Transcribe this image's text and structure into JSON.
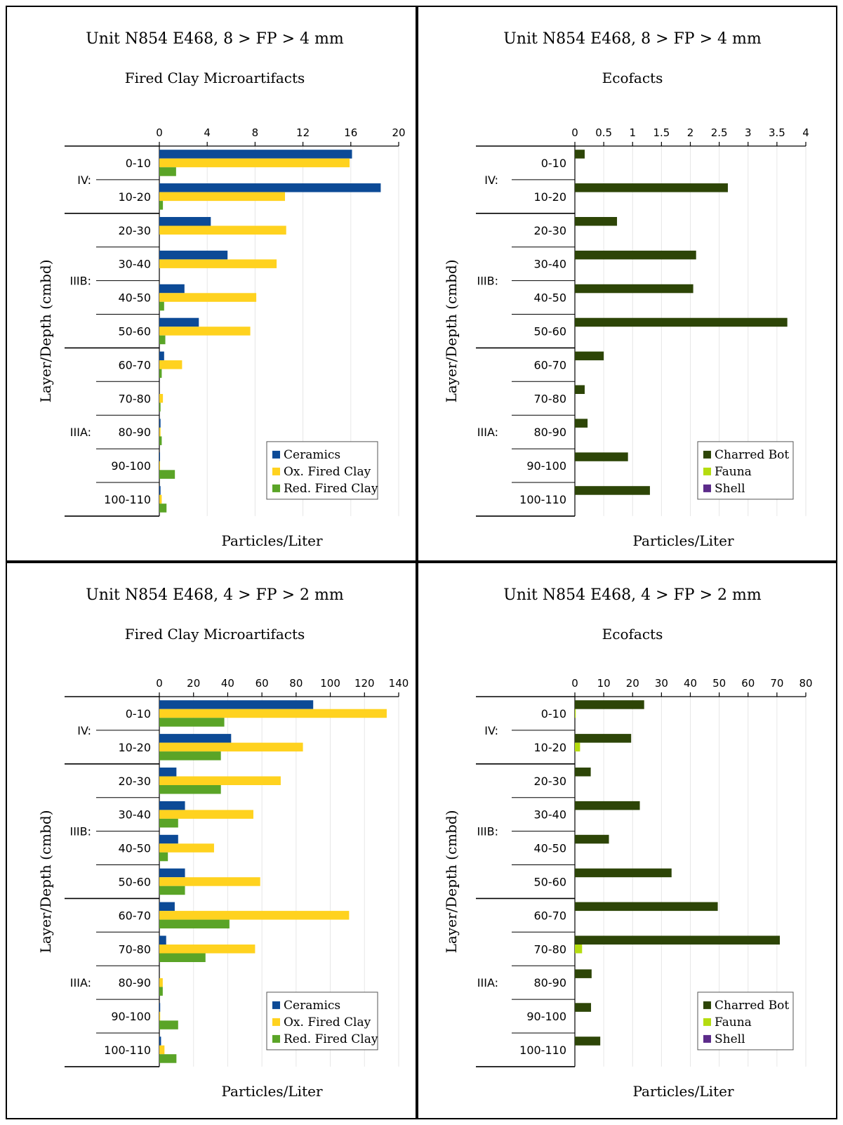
{
  "figure": {
    "colors": {
      "ceramics": "#0c4a96",
      "ox_fired_clay": "#ffd21f",
      "red_fired_clay": "#5aa427",
      "charred_bot": "#2d4507",
      "fauna": "#b5dc10",
      "shell": "#5c2b8a"
    }
  },
  "chart_data": [
    {
      "type": "bar",
      "title": "Unit N854 E468, 8 > FP > 4 mm",
      "subtitle": "Fired Clay Microartifacts",
      "xlabel": "Particles/Liter",
      "ylabel": "Layer/Depth (cmbd)",
      "categories": [
        "0-10",
        "10-20",
        "20-30",
        "30-40",
        "40-50",
        "50-60",
        "60-70",
        "70-80",
        "80-90",
        "90-100",
        "100-110"
      ],
      "layers": [
        {
          "label": "IV:",
          "from": 0,
          "to": 1
        },
        {
          "label": "IIIB:",
          "from": 2,
          "to": 5
        },
        {
          "label": "IIIA:",
          "from": 6,
          "to": 10
        }
      ],
      "xlim": [
        0,
        20
      ],
      "xticks": [
        "0",
        "4",
        "8",
        "12",
        "16",
        "20"
      ],
      "legend_position": "bottom-right",
      "series": [
        {
          "name": "Ceramics",
          "color": "#0c4a96",
          "values": [
            16.1,
            18.5,
            4.3,
            5.7,
            2.1,
            3.3,
            0.4,
            0.0,
            0.1,
            0.05,
            0.1
          ]
        },
        {
          "name": "Ox. Fired Clay",
          "color": "#ffd21f",
          "values": [
            15.9,
            10.5,
            10.6,
            9.8,
            8.1,
            7.6,
            1.9,
            0.3,
            0.1,
            0.05,
            0.2
          ]
        },
        {
          "name": "Red. Fired Clay",
          "color": "#5aa427",
          "values": [
            1.4,
            0.3,
            0.0,
            0.0,
            0.4,
            0.5,
            0.2,
            0.1,
            0.2,
            1.3,
            0.6
          ]
        }
      ]
    },
    {
      "type": "bar",
      "title": "Unit N854 E468, 8 > FP > 4 mm",
      "subtitle": "Ecofacts",
      "xlabel": "Particles/Liter",
      "ylabel": "Layer/Depth (cmbd)",
      "categories": [
        "0-10",
        "10-20",
        "20-30",
        "30-40",
        "40-50",
        "50-60",
        "60-70",
        "70-80",
        "80-90",
        "90-100",
        "100-110"
      ],
      "layers": [
        {
          "label": "IV:",
          "from": 0,
          "to": 1
        },
        {
          "label": "IIIB:",
          "from": 2,
          "to": 5
        },
        {
          "label": "IIIA:",
          "from": 6,
          "to": 10
        }
      ],
      "xlim": [
        0,
        4
      ],
      "xticks": [
        "0",
        "0.5",
        "1",
        "1.5",
        "2",
        "2.5",
        "3",
        "3.5",
        "4"
      ],
      "legend_position": "bottom-right",
      "series": [
        {
          "name": "Charred Bot",
          "color": "#2d4507",
          "values": [
            0.17,
            2.65,
            0.73,
            2.1,
            2.05,
            3.68,
            0.5,
            0.17,
            0.22,
            0.92,
            1.3
          ]
        },
        {
          "name": "Fauna",
          "color": "#b5dc10",
          "values": [
            0,
            0,
            0,
            0,
            0,
            0,
            0,
            0,
            0,
            0,
            0
          ]
        },
        {
          "name": "Shell",
          "color": "#5c2b8a",
          "values": [
            0,
            0,
            0,
            0,
            0,
            0,
            0,
            0,
            0,
            0,
            0
          ]
        }
      ]
    },
    {
      "type": "bar",
      "title": "Unit N854 E468, 4 > FP > 2 mm",
      "subtitle": "Fired Clay Microartifacts",
      "xlabel": "Particles/Liter",
      "ylabel": "Layer/Depth (cmbd)",
      "categories": [
        "0-10",
        "10-20",
        "20-30",
        "30-40",
        "40-50",
        "50-60",
        "60-70",
        "70-80",
        "80-90",
        "90-100",
        "100-110"
      ],
      "layers": [
        {
          "label": "IV:",
          "from": 0,
          "to": 1
        },
        {
          "label": "IIIB:",
          "from": 2,
          "to": 5
        },
        {
          "label": "IIIA:",
          "from": 6,
          "to": 10
        }
      ],
      "xlim": [
        0,
        140
      ],
      "xticks": [
        "0",
        "20",
        "40",
        "60",
        "80",
        "100",
        "120",
        "140"
      ],
      "legend_position": "bottom-right",
      "series": [
        {
          "name": "Ceramics",
          "color": "#0c4a96",
          "values": [
            90,
            42,
            10,
            15,
            11,
            15,
            9,
            4,
            0,
            0.5,
            1
          ]
        },
        {
          "name": "Ox. Fired Clay",
          "color": "#ffd21f",
          "values": [
            133,
            84,
            71,
            55,
            32,
            59,
            111,
            56,
            2,
            0.5,
            3
          ]
        },
        {
          "name": "Red. Fired Clay",
          "color": "#5aa427",
          "values": [
            38,
            36,
            36,
            11,
            5,
            15,
            41,
            27,
            2,
            11,
            10
          ]
        }
      ]
    },
    {
      "type": "bar",
      "title": "Unit N854 E468, 4 > FP > 2 mm",
      "subtitle": "Ecofacts",
      "xlabel": "Particles/Liter",
      "ylabel": "Layer/Depth (cmbd)",
      "categories": [
        "0-10",
        "10-20",
        "20-30",
        "30-40",
        "40-50",
        "50-60",
        "60-70",
        "70-80",
        "80-90",
        "90-100",
        "100-110"
      ],
      "layers": [
        {
          "label": "IV:",
          "from": 0,
          "to": 1
        },
        {
          "label": "IIIB:",
          "from": 2,
          "to": 5
        },
        {
          "label": "IIIA:",
          "from": 6,
          "to": 10
        }
      ],
      "xlim": [
        0,
        80
      ],
      "xticks": [
        "0",
        "10",
        "20",
        "30",
        "40",
        "50",
        "60",
        "70",
        "80"
      ],
      "legend_position": "bottom-right",
      "series": [
        {
          "name": "Charred Bot",
          "color": "#2d4507",
          "values": [
            24,
            19.5,
            5.5,
            22.5,
            11.8,
            33.5,
            49.5,
            71,
            5.8,
            5.6,
            8.8
          ]
        },
        {
          "name": "Fauna",
          "color": "#b5dc10",
          "values": [
            0.3,
            1.8,
            0,
            0,
            0,
            0,
            0,
            2.5,
            0,
            0,
            0
          ]
        },
        {
          "name": "Shell",
          "color": "#5c2b8a",
          "values": [
            0,
            0,
            0,
            0,
            0,
            0,
            0,
            0,
            0,
            0,
            0
          ]
        }
      ]
    }
  ]
}
